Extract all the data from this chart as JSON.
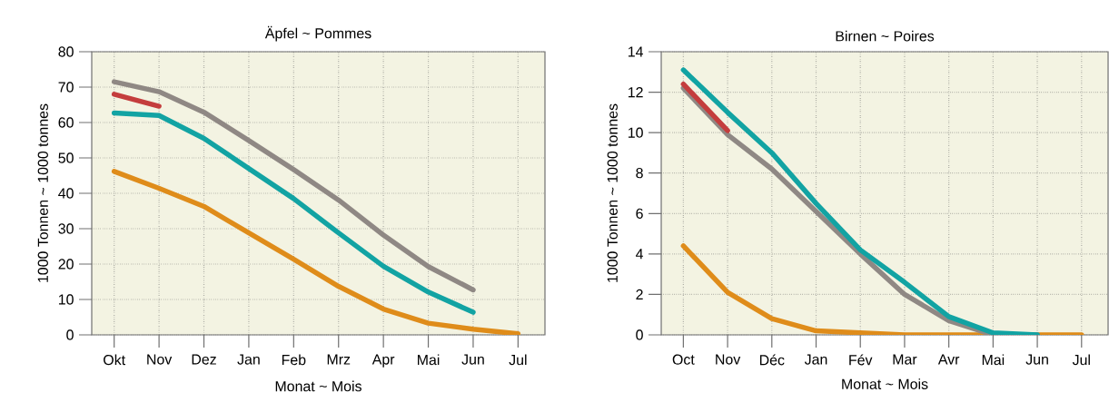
{
  "chart_data": [
    {
      "type": "line",
      "title": "Äpfel ~ Pommes",
      "xlabel": "Monat ~ Mois",
      "ylabel": "1000 Tonnen ~ 1000 tonnes",
      "categories": [
        "Okt",
        "Nov",
        "Dez",
        "Jan",
        "Feb",
        "Mrz",
        "Apr",
        "Mai",
        "Jun",
        "Jul"
      ],
      "series": [
        {
          "color": "#df8c1a",
          "values": [
            46.2,
            41.4,
            36.3,
            28.8,
            21.4,
            13.7,
            7.3,
            3.3,
            1.6,
            0.3
          ]
        },
        {
          "color": "#8f8884",
          "values": [
            71.5,
            68.7,
            62.9,
            54.9,
            46.7,
            38.1,
            28.2,
            19.3,
            12.7,
            null
          ]
        },
        {
          "color": "#c43d3d",
          "values": [
            68,
            64.6,
            null,
            null,
            null,
            null,
            null,
            null,
            null,
            null
          ]
        },
        {
          "color": "#12a3a3",
          "values": [
            62.7,
            62,
            55.5,
            47,
            38.5,
            28.8,
            19.4,
            12.1,
            6.4,
            null
          ]
        }
      ],
      "ylim": [
        0,
        80
      ],
      "yticks": [
        0,
        10,
        20,
        30,
        40,
        50,
        60,
        70,
        80
      ],
      "grid": true,
      "marker": "none",
      "line_style": "solid"
    },
    {
      "type": "line",
      "title": "Birnen ~ Poires",
      "xlabel": "Monat ~ Mois",
      "ylabel": "1000 Tonnen ~ 1000 tonnes",
      "categories": [
        "Oct",
        "Nov",
        "Déc",
        "Jan",
        "Fév",
        "Mar",
        "Avr",
        "Mai",
        "Jun",
        "Jul"
      ],
      "series": [
        {
          "color": "#df8c1a",
          "values": [
            4.4,
            2.1,
            0.8,
            0.2,
            0.1,
            0,
            0,
            0,
            0,
            0
          ]
        },
        {
          "color": "#8f8884",
          "values": [
            12.2,
            9.9,
            8.2,
            6.1,
            4.0,
            2.0,
            0.7,
            0,
            0,
            null
          ]
        },
        {
          "color": "#c43d3d",
          "values": [
            12.4,
            10.1,
            null,
            null,
            null,
            null,
            null,
            null,
            null,
            null
          ]
        },
        {
          "color": "#12a3a3",
          "values": [
            13.1,
            11.0,
            9.0,
            6.5,
            4.2,
            2.6,
            0.9,
            0.1,
            0,
            null
          ]
        }
      ],
      "ylim": [
        0,
        14
      ],
      "yticks": [
        0,
        2,
        4,
        6,
        8,
        10,
        12,
        14
      ],
      "grid": true,
      "marker": "none",
      "line_style": "solid"
    }
  ]
}
